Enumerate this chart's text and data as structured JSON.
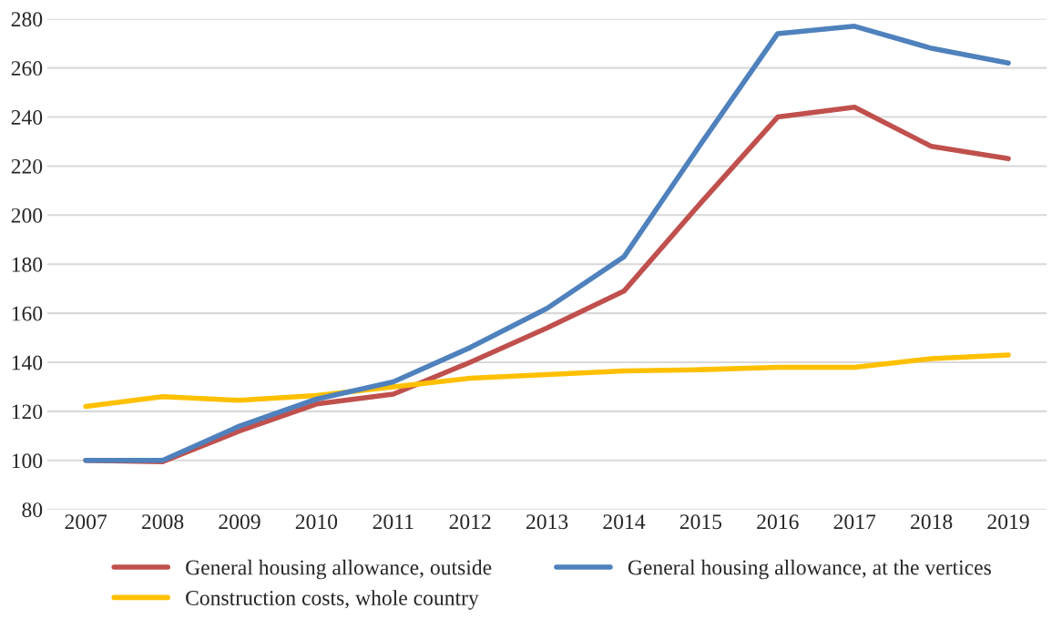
{
  "chart_data": {
    "type": "line",
    "categories": [
      "2007",
      "2008",
      "2009",
      "2010",
      "2011",
      "2012",
      "2013",
      "2014",
      "2015",
      "2016",
      "2017",
      "2018",
      "2019"
    ],
    "series": [
      {
        "name": "General housing allowance, outside",
        "color": "#c0504d",
        "values": [
          100,
          99.5,
          112,
          123,
          127,
          140,
          154,
          169,
          205,
          240,
          244,
          228,
          223
        ]
      },
      {
        "name": "Construction costs, whole country",
        "color": "#ffc000",
        "values": [
          122,
          126,
          124.5,
          126.5,
          130,
          133.5,
          135,
          136.5,
          137,
          138,
          138,
          141.5,
          143
        ]
      },
      {
        "name": "General housing allowance, at the vertices",
        "color": "#4f81bd",
        "values": [
          100,
          100,
          114,
          125,
          132,
          146,
          162,
          183,
          229,
          274,
          277,
          268,
          262
        ]
      }
    ],
    "ylim": [
      80,
      280
    ],
    "yticks": [
      80,
      100,
      120,
      140,
      160,
      180,
      200,
      220,
      240,
      260,
      280
    ],
    "grid": "y",
    "legend": "bottom",
    "marker": "none",
    "line_style": "solid"
  }
}
